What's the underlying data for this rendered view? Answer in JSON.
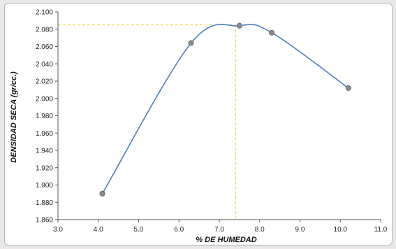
{
  "chart_data": {
    "type": "scatter",
    "title": "",
    "xlabel": "% DE HUMEDAD",
    "ylabel": "DENSIDAD SECA (gr/cc.)",
    "xlim": [
      3.0,
      11.0
    ],
    "ylim": [
      1.86,
      2.1
    ],
    "x_ticks": [
      "3.0",
      "4.0",
      "5.0",
      "6.0",
      "7.0",
      "8.0",
      "9.0",
      "10.0",
      "11.0"
    ],
    "y_ticks": [
      "1.860",
      "1.880",
      "1.900",
      "1.920",
      "1.940",
      "1.960",
      "1.980",
      "2.000",
      "2.020",
      "2.040",
      "2.060",
      "2.080",
      "2.100"
    ],
    "grid": false,
    "series": [
      {
        "points": [
          {
            "x": 4.1,
            "y": 1.89
          },
          {
            "x": 6.3,
            "y": 2.064
          },
          {
            "x": 7.5,
            "y": 2.084
          },
          {
            "x": 8.3,
            "y": 2.076
          },
          {
            "x": 10.2,
            "y": 2.012
          }
        ],
        "fit": "smooth-curve"
      }
    ],
    "reference_lines": {
      "x": 7.4,
      "y": 2.085
    },
    "colors": {
      "curve": "#4a7cc4",
      "marker": "#8a8a94",
      "reference": "#e8d44a"
    }
  }
}
